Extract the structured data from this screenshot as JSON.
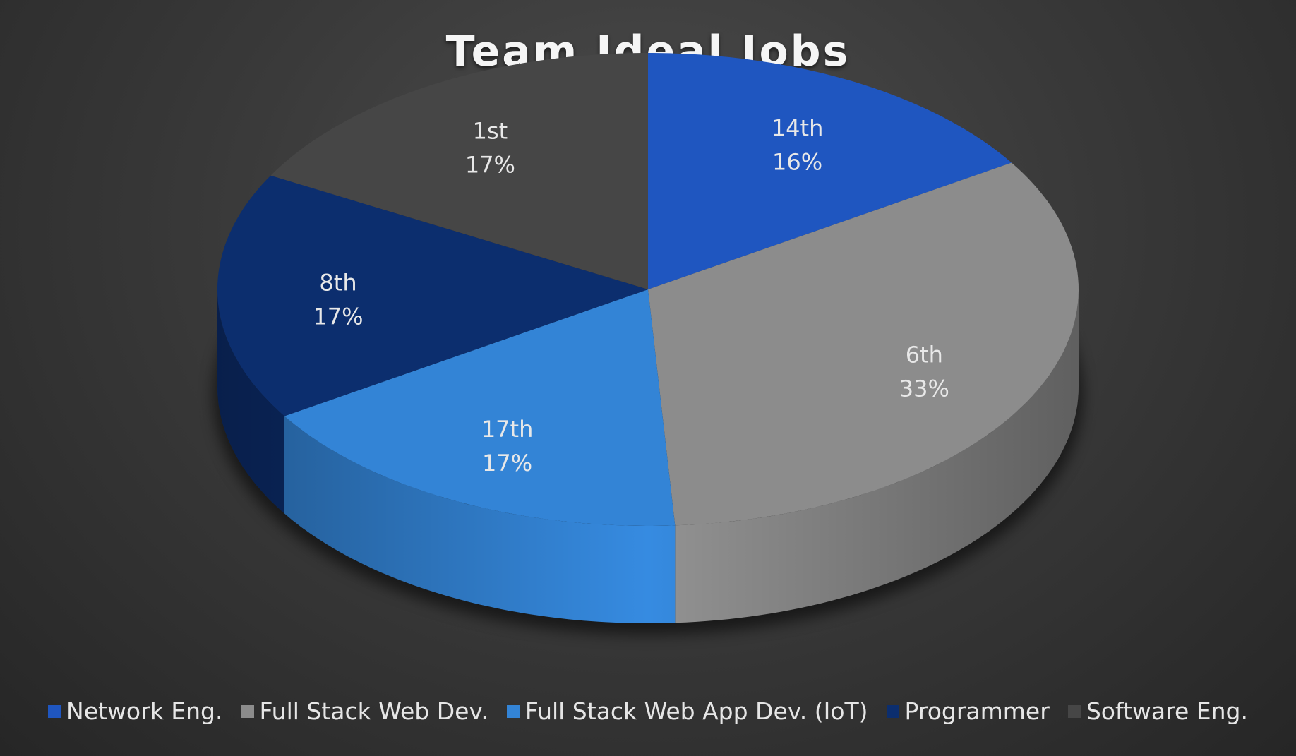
{
  "chart_data": {
    "type": "pie",
    "title": "Team Ideal Jobs",
    "categories": [
      "Network Eng.",
      "Full Stack Web Dev.",
      "Full Stack Web App Dev. (IoT)",
      "Programmer",
      "Software Eng."
    ],
    "values": [
      16,
      33,
      17,
      17,
      17
    ],
    "data_labels": [
      {
        "rank": "14th",
        "percent": "16%"
      },
      {
        "rank": "6th",
        "percent": "33%"
      },
      {
        "rank": "17th",
        "percent": "17%"
      },
      {
        "rank": "8th",
        "percent": "17%"
      },
      {
        "rank": "1st",
        "percent": "17%"
      }
    ],
    "colors": [
      "#1f56c0",
      "#8c8c8c",
      "#3384d6",
      "#0c2e6e",
      "#464646"
    ],
    "legend_position": "bottom",
    "style": "3d"
  }
}
